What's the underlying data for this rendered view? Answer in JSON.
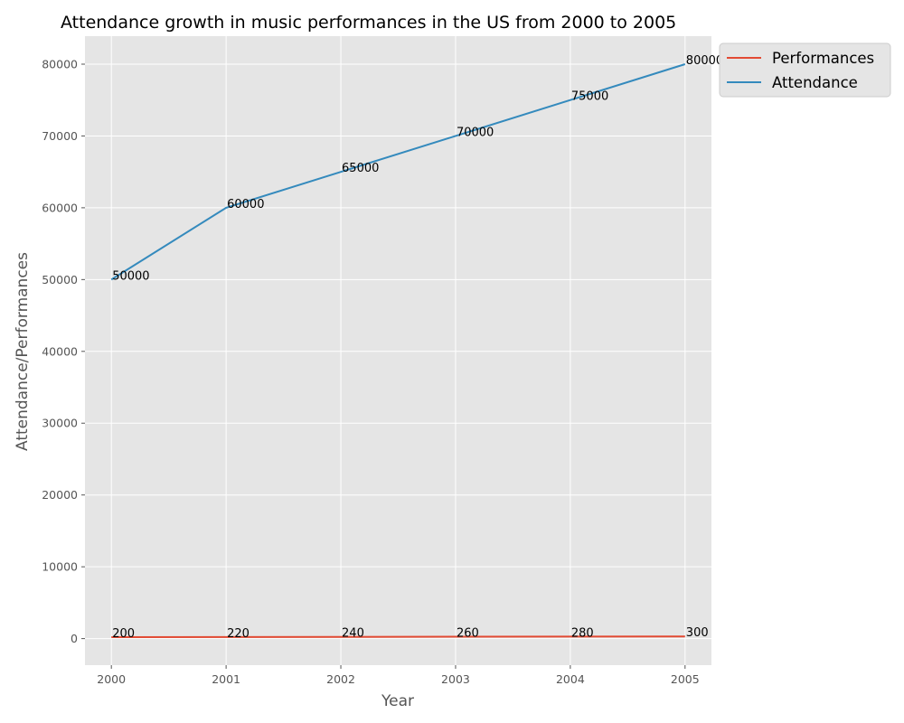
{
  "chart_data": {
    "type": "line",
    "title": "Attendance growth in music performances in the US from 2000 to 2005",
    "xlabel": "Year",
    "ylabel": "Attendance/Performances",
    "x": [
      2000,
      2001,
      2002,
      2003,
      2004,
      2005
    ],
    "x_tick_labels": [
      "2000",
      "2001",
      "2002",
      "2003",
      "2004",
      "2005"
    ],
    "y_ticks": [
      0,
      10000,
      20000,
      30000,
      40000,
      50000,
      60000,
      70000,
      80000
    ],
    "y_tick_labels": [
      "0",
      "10000",
      "20000",
      "30000",
      "40000",
      "50000",
      "60000",
      "70000",
      "80000"
    ],
    "xlim": [
      1999.77,
      2005.23
    ],
    "ylim": [
      -3700,
      83900
    ],
    "grid": true,
    "legend_position": "outside-top-right",
    "series": [
      {
        "name": "Performances",
        "color": "#e24a33",
        "values": [
          200,
          220,
          240,
          260,
          280,
          300
        ],
        "labels": [
          "200",
          "220",
          "240",
          "260",
          "280",
          "300"
        ]
      },
      {
        "name": "Attendance",
        "color": "#348abd",
        "values": [
          50000,
          60000,
          65000,
          70000,
          75000,
          80000
        ],
        "labels": [
          "50000",
          "60000",
          "65000",
          "70000",
          "75000",
          "80000"
        ]
      }
    ]
  }
}
